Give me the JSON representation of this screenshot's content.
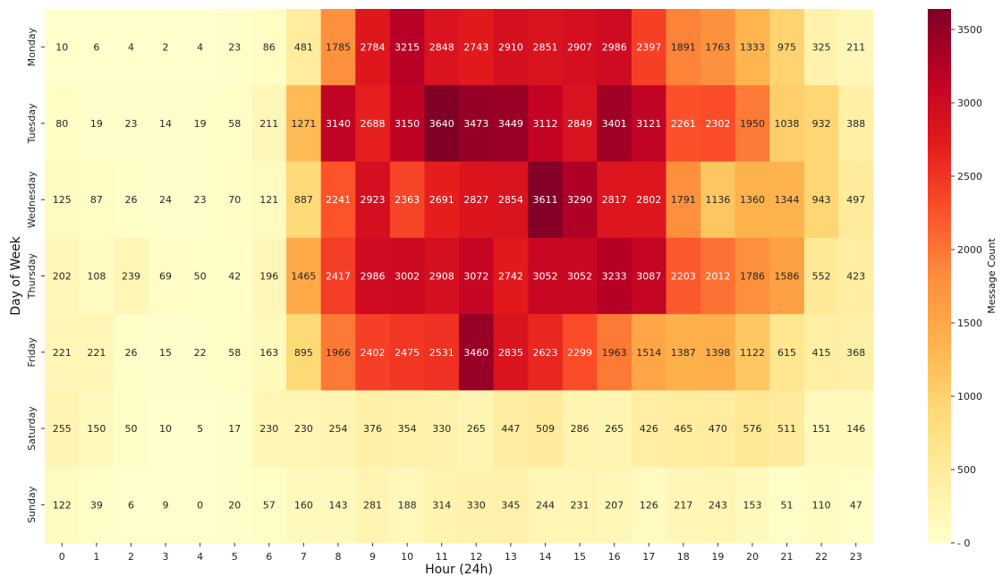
{
  "chart_data": {
    "type": "heatmap",
    "title": "",
    "xlabel": "Hour (24h)",
    "ylabel": "Day of Week",
    "colorbar_label": "Message Count",
    "x_categories": [
      "0",
      "1",
      "2",
      "3",
      "4",
      "5",
      "6",
      "7",
      "8",
      "9",
      "10",
      "11",
      "12",
      "13",
      "14",
      "15",
      "16",
      "17",
      "18",
      "19",
      "20",
      "21",
      "22",
      "23"
    ],
    "y_categories": [
      "Monday",
      "Tuesday",
      "Wednesday",
      "Thursday",
      "Friday",
      "Saturday",
      "Sunday"
    ],
    "values": [
      [
        10,
        6,
        4,
        2,
        4,
        23,
        86,
        481,
        1785,
        2784,
        3215,
        2848,
        2743,
        2910,
        2851,
        2907,
        2986,
        2397,
        1891,
        1763,
        1333,
        975,
        325,
        211
      ],
      [
        80,
        19,
        23,
        14,
        19,
        58,
        211,
        1271,
        3140,
        2688,
        3150,
        3640,
        3473,
        3449,
        3112,
        2849,
        3401,
        3121,
        2261,
        2302,
        1950,
        1038,
        932,
        388
      ],
      [
        125,
        87,
        26,
        24,
        23,
        70,
        121,
        887,
        2241,
        2923,
        2363,
        2691,
        2827,
        2854,
        3611,
        3290,
        2817,
        2802,
        1791,
        1136,
        1360,
        1344,
        943,
        497
      ],
      [
        202,
        108,
        239,
        69,
        50,
        42,
        196,
        1465,
        2417,
        2986,
        3002,
        2908,
        3072,
        2742,
        3052,
        3052,
        3233,
        3087,
        2203,
        2012,
        1786,
        1586,
        552,
        423
      ],
      [
        221,
        221,
        26,
        15,
        22,
        58,
        163,
        895,
        1966,
        2402,
        2475,
        2531,
        3460,
        2835,
        2623,
        2299,
        1963,
        1514,
        1387,
        1398,
        1122,
        615,
        415,
        368
      ],
      [
        255,
        150,
        50,
        10,
        5,
        17,
        230,
        230,
        254,
        376,
        354,
        330,
        265,
        447,
        509,
        286,
        265,
        426,
        465,
        470,
        576,
        511,
        151,
        146
      ],
      [
        122,
        39,
        6,
        9,
        0,
        20,
        57,
        160,
        143,
        281,
        188,
        314,
        330,
        345,
        244,
        231,
        207,
        126,
        217,
        243,
        153,
        51,
        110,
        47
      ]
    ],
    "color_range": [
      0,
      3640
    ],
    "colorbar_ticks": [
      0,
      500,
      1000,
      1500,
      2000,
      2500,
      3000,
      3500
    ],
    "colormap": "YlOrRd"
  }
}
